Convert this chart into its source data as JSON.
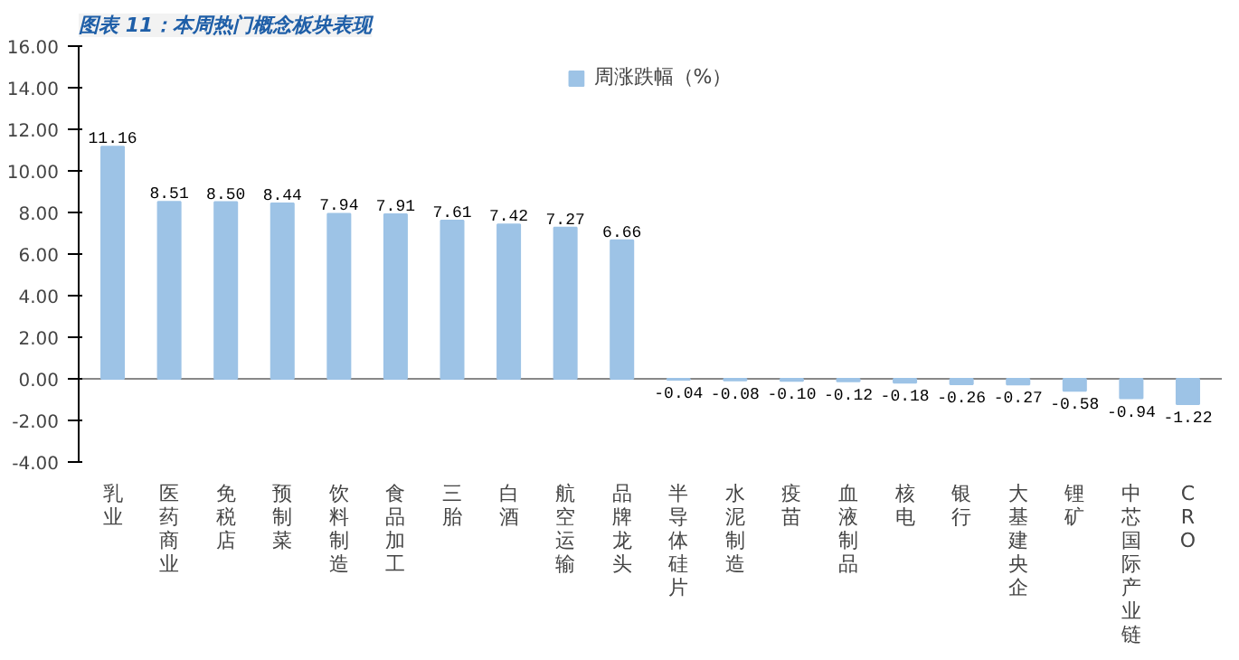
{
  "chart_data": {
    "type": "bar",
    "title": "图表 11：本周热门概念板块表现",
    "categories": [
      "乳业",
      "医药商业",
      "免税店",
      "预制菜",
      "饮料制造",
      "食品加工",
      "三胎",
      "白酒",
      "航空运输",
      "品牌龙头",
      "半导体硅片",
      "水泥制造",
      "疫苗",
      "血液制品",
      "核电",
      "银行",
      "大基建央企",
      "锂矿",
      "中芯国际产业链",
      "CRO"
    ],
    "series": [
      {
        "name": "周涨跌幅（%）",
        "color": "#9dc3e6",
        "values": [
          11.16,
          8.51,
          8.5,
          8.44,
          7.94,
          7.91,
          7.61,
          7.42,
          7.27,
          6.66,
          -0.04,
          -0.08,
          -0.1,
          -0.12,
          -0.18,
          -0.26,
          -0.27,
          -0.58,
          -0.94,
          -1.22
        ]
      }
    ],
    "ylim": [
      -4,
      16
    ],
    "yticks": [
      {
        "value": -4,
        "label": "-4.00"
      },
      {
        "value": -2,
        "label": "-2.00"
      },
      {
        "value": 0,
        "label": "0.00"
      },
      {
        "value": 2,
        "label": "2.00"
      },
      {
        "value": 4,
        "label": "4.00"
      },
      {
        "value": 6,
        "label": "6.00"
      },
      {
        "value": 8,
        "label": "8.00"
      },
      {
        "value": 10,
        "label": "10.00"
      },
      {
        "value": 12,
        "label": "12.00"
      },
      {
        "value": 14,
        "label": "14.00"
      },
      {
        "value": 16,
        "label": "16.00"
      }
    ],
    "value_labels": [
      "11.16",
      "8.51",
      "8.50",
      "8.44",
      "7.94",
      "7.91",
      "7.61",
      "7.42",
      "7.27",
      "6.66",
      "-0.04",
      "-0.08",
      "-0.10",
      "-0.12",
      "-0.18",
      "-0.26",
      "-0.27",
      "-0.58",
      "-0.94",
      "-1.22"
    ],
    "legend": "top"
  }
}
